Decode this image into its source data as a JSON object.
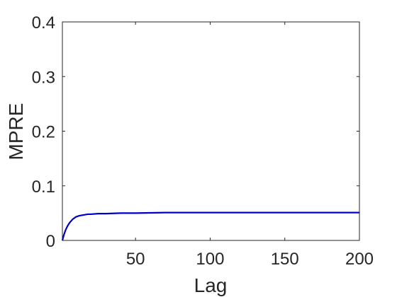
{
  "chart_data": {
    "type": "line",
    "title": "",
    "xlabel": "Lag",
    "ylabel": "MPRE",
    "xlim": [
      1,
      200
    ],
    "ylim": [
      0,
      0.4
    ],
    "x_ticks": [
      50,
      100,
      150,
      200
    ],
    "x_tick_labels": [
      "50",
      "100",
      "150",
      "200"
    ],
    "y_ticks": [
      0,
      0.1,
      0.2,
      0.3,
      0.4
    ],
    "y_tick_labels": [
      "0",
      "0.1",
      "0.2",
      "0.3",
      "0.4"
    ],
    "grid": false,
    "legend": "none",
    "series": [
      {
        "color": "#0000cc",
        "x": [
          1,
          2,
          3,
          4,
          5,
          6,
          7,
          8,
          9,
          10,
          12,
          14,
          16,
          18,
          20,
          25,
          30,
          35,
          40,
          50,
          60,
          70,
          80,
          100,
          120,
          140,
          160,
          180,
          200
        ],
        "y": [
          0.0,
          0.01,
          0.018,
          0.024,
          0.029,
          0.033,
          0.036,
          0.039,
          0.041,
          0.043,
          0.045,
          0.046,
          0.047,
          0.048,
          0.048,
          0.049,
          0.049,
          0.0495,
          0.05,
          0.05,
          0.0505,
          0.051,
          0.051,
          0.051,
          0.051,
          0.051,
          0.051,
          0.051,
          0.051
        ]
      }
    ]
  }
}
